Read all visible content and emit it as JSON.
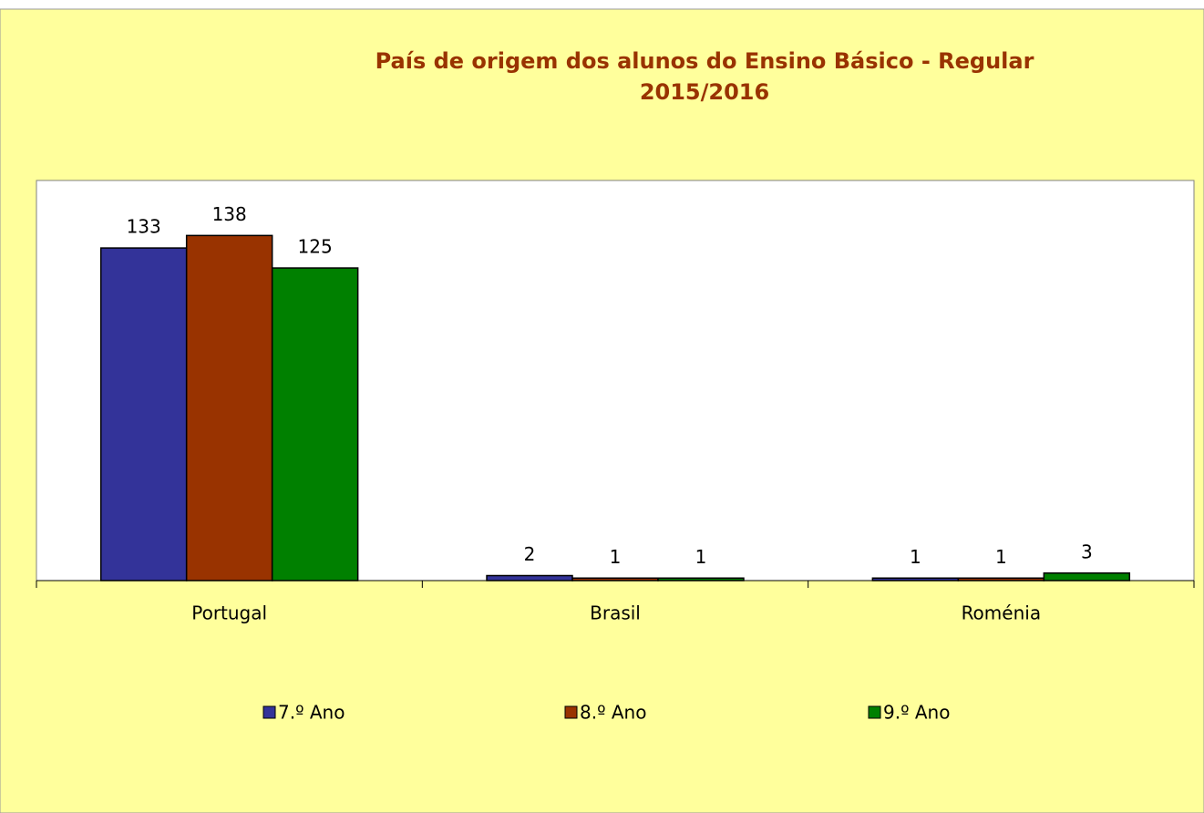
{
  "chart_data": {
    "type": "bar",
    "title": [
      "País de origem dos alunos do Ensino Básico - Regular",
      "2015/2016"
    ],
    "categories": [
      "Portugal",
      "Brasil",
      "Roménia"
    ],
    "series": [
      {
        "name": "7.º Ano",
        "color": "#333399",
        "values": [
          133,
          2,
          1
        ]
      },
      {
        "name": "8.º Ano",
        "color": "#993300",
        "values": [
          138,
          1,
          1
        ]
      },
      {
        "name": "9.º Ano",
        "color": "#008000",
        "values": [
          125,
          1,
          3
        ]
      }
    ],
    "ylim": [
      0,
      160
    ]
  }
}
